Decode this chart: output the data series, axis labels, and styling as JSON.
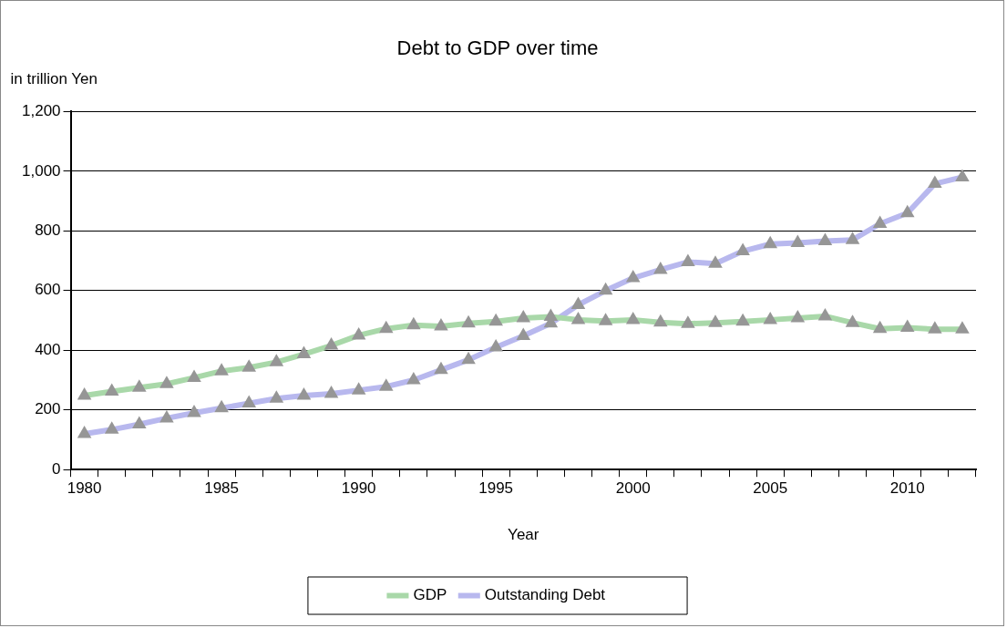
{
  "chart_data": {
    "type": "line",
    "title": "Debt to GDP over time",
    "xlabel": "Year",
    "ylabel": "in trillion Yen",
    "categories": [
      "1980",
      null,
      null,
      null,
      null,
      "1985",
      null,
      null,
      null,
      null,
      "1990",
      null,
      null,
      null,
      null,
      "1995",
      null,
      null,
      null,
      null,
      "2000",
      null,
      null,
      null,
      null,
      "2005",
      null,
      null,
      null,
      null,
      "2010",
      null,
      null
    ],
    "series": [
      {
        "name": "GDP",
        "color": "#a9d8a9",
        "values": [
          248,
          262,
          275,
          287,
          308,
          330,
          342,
          360,
          387,
          416,
          450,
          472,
          484,
          480,
          490,
          496,
          508,
          512,
          502,
          498,
          502,
          493,
          489,
          492,
          496,
          502,
          508,
          514,
          492,
          472,
          476,
          470,
          470
        ]
      },
      {
        "name": "Outstanding Debt",
        "color": "#b8b8ee",
        "values": [
          120,
          134,
          152,
          172,
          190,
          206,
          222,
          238,
          248,
          254,
          266,
          278,
          300,
          334,
          368,
          410,
          448,
          490,
          552,
          600,
          642,
          670,
          696,
          690,
          732,
          756,
          760,
          766,
          770,
          824,
          860,
          958,
          980
        ]
      }
    ],
    "ylim": [
      0,
      1200
    ],
    "yticks": [
      0,
      200,
      400,
      600,
      800,
      {
        "value": 1000,
        "label": "1,000"
      },
      {
        "value": 1200,
        "label": "1,200"
      }
    ],
    "grid": "y",
    "legend": "bottom",
    "marker": "triangle",
    "line_style": "solid"
  }
}
